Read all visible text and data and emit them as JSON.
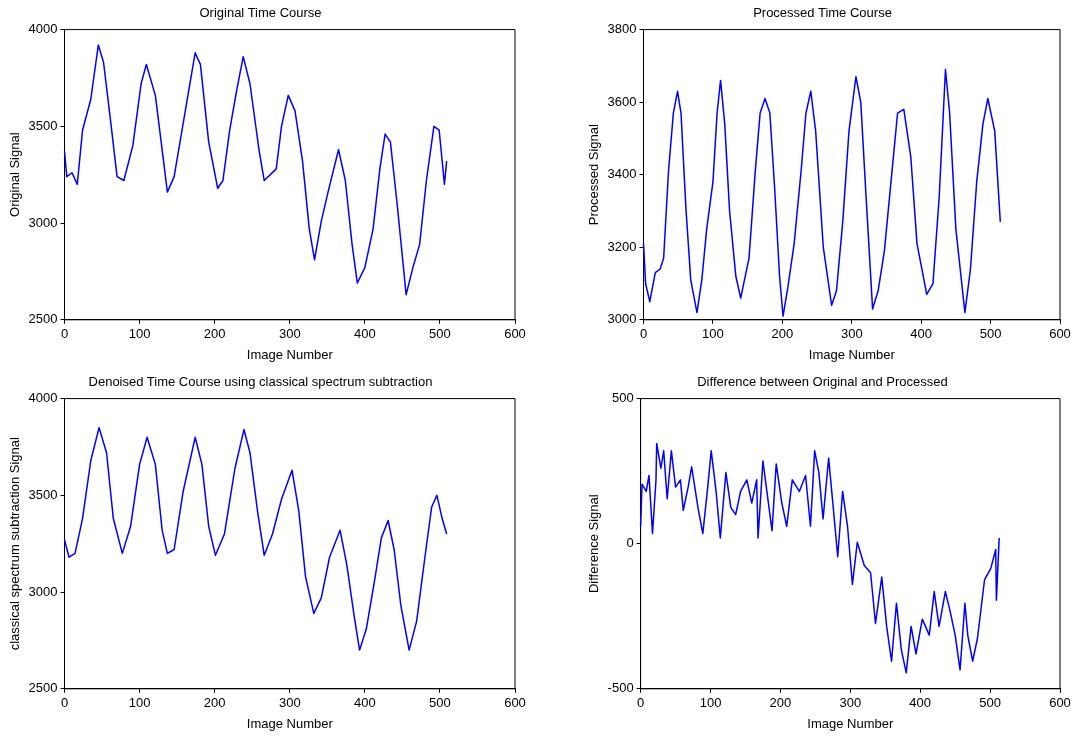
{
  "chart_data": [
    {
      "type": "line",
      "title": "Original Time Course",
      "xlabel": "Image Number",
      "ylabel": "Original Signal",
      "color": "#0000ff",
      "xlim": [
        0,
        600
      ],
      "xticks": [
        0,
        100,
        200,
        300,
        400,
        500,
        600
      ],
      "ylim": [
        2500,
        4000
      ],
      "yticks": [
        2500,
        3000,
        3500,
        4000
      ],
      "x": [
        0,
        3,
        10,
        17,
        24,
        35,
        45,
        52,
        61,
        70,
        79,
        91,
        102,
        109,
        121,
        130,
        137,
        146,
        160,
        174,
        181,
        192,
        204,
        211,
        220,
        229,
        238,
        247,
        259,
        266,
        282,
        289,
        298,
        307,
        317,
        326,
        333,
        342,
        351,
        365,
        374,
        383,
        390,
        400,
        411,
        420,
        427,
        434,
        443,
        455,
        464,
        473,
        482,
        492,
        499,
        506,
        509
      ],
      "values": [
        3370,
        3240,
        3260,
        3200,
        3480,
        3640,
        3920,
        3830,
        3540,
        3240,
        3220,
        3400,
        3720,
        3820,
        3660,
        3380,
        3160,
        3240,
        3560,
        3880,
        3820,
        3420,
        3180,
        3220,
        3480,
        3680,
        3860,
        3720,
        3380,
        3220,
        3280,
        3500,
        3660,
        3580,
        3320,
        2970,
        2810,
        3010,
        3160,
        3380,
        3220,
        2890,
        2690,
        2770,
        2970,
        3280,
        3460,
        3420,
        3100,
        2630,
        2770,
        2890,
        3220,
        3500,
        3480,
        3200,
        3320
      ]
    },
    {
      "type": "line",
      "title": "Processed Time Course",
      "xlabel": "Image Number",
      "ylabel": "Processed Signal",
      "color": "#0000ff",
      "xlim": [
        0,
        600
      ],
      "xticks": [
        0,
        100,
        200,
        300,
        400,
        500,
        600
      ],
      "ylim": [
        3000,
        3800
      ],
      "yticks": [
        3000,
        3200,
        3400,
        3600,
        3800
      ],
      "x": [
        0,
        3,
        9,
        17,
        24,
        29,
        36,
        43,
        49,
        54,
        61,
        68,
        77,
        84,
        91,
        100,
        106,
        111,
        117,
        124,
        133,
        140,
        152,
        161,
        168,
        175,
        182,
        189,
        196,
        201,
        208,
        217,
        227,
        234,
        241,
        248,
        259,
        271,
        278,
        287,
        296,
        306,
        313,
        320,
        330,
        338,
        347,
        359,
        366,
        375,
        385,
        394,
        408,
        417,
        426,
        435,
        441,
        450,
        463,
        471,
        480,
        489,
        496,
        506,
        514
      ],
      "values": [
        3210,
        3100,
        3050,
        3130,
        3140,
        3170,
        3410,
        3570,
        3630,
        3570,
        3310,
        3110,
        3020,
        3110,
        3250,
        3380,
        3570,
        3660,
        3540,
        3300,
        3120,
        3060,
        3170,
        3410,
        3570,
        3610,
        3570,
        3360,
        3120,
        3010,
        3090,
        3210,
        3410,
        3570,
        3630,
        3520,
        3200,
        3040,
        3080,
        3270,
        3520,
        3670,
        3600,
        3360,
        3030,
        3080,
        3190,
        3430,
        3570,
        3580,
        3450,
        3210,
        3070,
        3100,
        3340,
        3690,
        3570,
        3250,
        3020,
        3140,
        3380,
        3540,
        3610,
        3520,
        3270
      ]
    },
    {
      "type": "line",
      "title": "Denoised Time Course using classical spectrum subtraction",
      "xlabel": "Image Number",
      "ylabel": "classical spectrum subtraction Signal",
      "color": "#0000ff",
      "xlim": [
        0,
        600
      ],
      "xticks": [
        0,
        100,
        200,
        300,
        400,
        500,
        600
      ],
      "ylim": [
        2500,
        4000
      ],
      "yticks": [
        2500,
        3000,
        3500,
        4000
      ],
      "x": [
        0,
        6,
        14,
        24,
        35,
        46,
        56,
        65,
        77,
        88,
        100,
        110,
        121,
        130,
        137,
        146,
        158,
        174,
        183,
        192,
        201,
        213,
        227,
        239,
        247,
        257,
        266,
        277,
        289,
        303,
        312,
        321,
        332,
        342,
        353,
        367,
        376,
        386,
        393,
        402,
        413,
        422,
        431,
        439,
        448,
        459,
        469,
        480,
        489,
        496,
        503,
        509
      ],
      "values": [
        3270,
        3180,
        3200,
        3380,
        3680,
        3850,
        3720,
        3380,
        3200,
        3340,
        3660,
        3800,
        3660,
        3320,
        3200,
        3220,
        3520,
        3800,
        3660,
        3340,
        3190,
        3300,
        3640,
        3840,
        3720,
        3420,
        3190,
        3300,
        3480,
        3630,
        3420,
        3080,
        2890,
        2970,
        3180,
        3320,
        3140,
        2870,
        2700,
        2810,
        3060,
        3280,
        3370,
        3220,
        2930,
        2700,
        2850,
        3180,
        3440,
        3500,
        3380,
        3300
      ]
    },
    {
      "type": "line",
      "title": "Difference between Original and Processed",
      "xlabel": "Image Number",
      "ylabel": "Difference Signal",
      "color": "#0000ff",
      "xlim": [
        0,
        600
      ],
      "xticks": [
        0,
        100,
        200,
        300,
        400,
        500,
        600
      ],
      "ylim": [
        -500,
        500
      ],
      "yticks": [
        -500,
        0,
        500
      ],
      "x": [
        0,
        2,
        8,
        12,
        17,
        22,
        23,
        29,
        33,
        38,
        44,
        50,
        57,
        61,
        68,
        73,
        82,
        89,
        96,
        101,
        108,
        114,
        122,
        129,
        136,
        143,
        152,
        159,
        166,
        168,
        175,
        182,
        188,
        194,
        202,
        209,
        217,
        227,
        236,
        243,
        249,
        255,
        261,
        269,
        275,
        282,
        289,
        296,
        303,
        310,
        320,
        329,
        336,
        345,
        352,
        359,
        366,
        373,
        380,
        387,
        394,
        403,
        413,
        420,
        427,
        436,
        443,
        450,
        457,
        464,
        468,
        475,
        482,
        492,
        501,
        508,
        509,
        513
      ],
      "values": [
        60,
        205,
        180,
        235,
        35,
        220,
        345,
        260,
        320,
        155,
        320,
        195,
        220,
        115,
        195,
        265,
        125,
        35,
        195,
        320,
        180,
        20,
        245,
        125,
        100,
        180,
        220,
        140,
        220,
        20,
        285,
        155,
        45,
        275,
        140,
        60,
        220,
        180,
        235,
        60,
        320,
        245,
        85,
        295,
        140,
        -45,
        180,
        60,
        -140,
        5,
        -75,
        -100,
        -275,
        -115,
        -285,
        -405,
        -205,
        -365,
        -445,
        -285,
        -380,
        -260,
        -315,
        -165,
        -285,
        -165,
        -235,
        -315,
        -435,
        -205,
        -315,
        -405,
        -325,
        -125,
        -85,
        -20,
        -195,
        20
      ]
    }
  ]
}
